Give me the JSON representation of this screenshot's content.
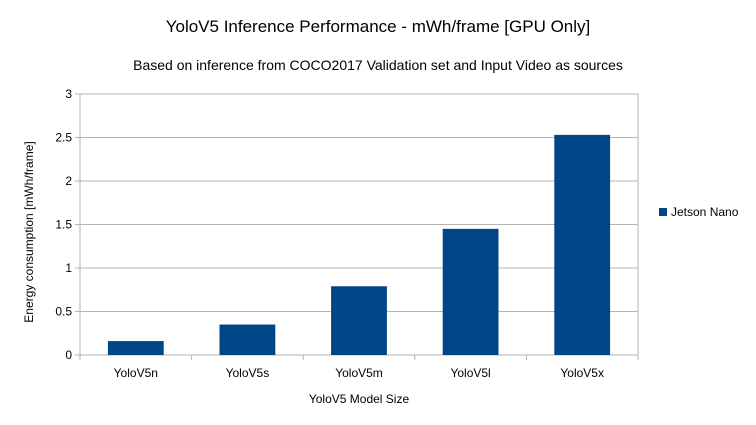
{
  "chart_data": {
    "type": "bar",
    "title": "YoloV5 Inference Performance - mWh/frame [GPU Only]",
    "subtitle": "Based on inference from COCO2017 Validation set and Input Video as sources",
    "xlabel": "YoloV5 Model Size",
    "ylabel": "Energy consumption [mWh/frame]",
    "categories": [
      "YoloV5n",
      "YoloV5s",
      "YoloV5m",
      "YoloV5l",
      "YoloV5x"
    ],
    "series": [
      {
        "name": "Jetson Nano",
        "values": [
          0.16,
          0.35,
          0.79,
          1.45,
          2.53
        ],
        "color": "#004586"
      }
    ],
    "ylim": [
      0,
      3
    ],
    "yticks": [
      0,
      0.5,
      1,
      1.5,
      2,
      2.5,
      3
    ],
    "ytick_labels": [
      "0",
      "0.5",
      "1",
      "1.5",
      "2",
      "2.5",
      "3"
    ],
    "grid": true,
    "legend": "right"
  }
}
